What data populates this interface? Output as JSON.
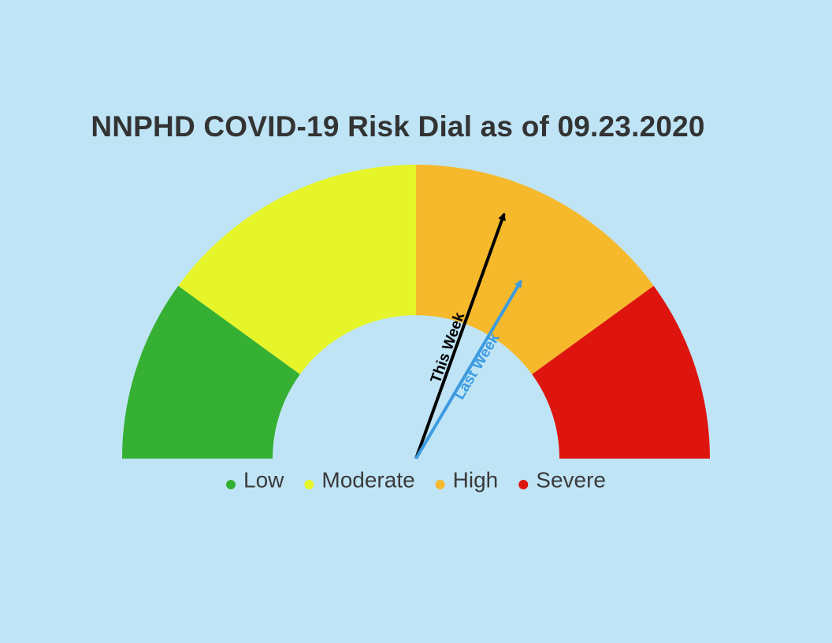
{
  "title": "NNPHD COVID-19 Risk Dial as of 09.23.2020",
  "chart_data": {
    "type": "gauge",
    "title": "NNPHD COVID-19 Risk Dial as of 09.23.2020",
    "scale": [
      0,
      100
    ],
    "segments": [
      {
        "name": "Low",
        "from": 0,
        "to": 20,
        "color": "#35b032"
      },
      {
        "name": "Moderate",
        "from": 20,
        "to": 50,
        "color": "#e6f52a"
      },
      {
        "name": "High",
        "from": 50,
        "to": 80,
        "color": "#f6b92b"
      },
      {
        "name": "Severe",
        "from": 80,
        "to": 100,
        "color": "#de150e"
      }
    ],
    "needles": [
      {
        "label": "This Week",
        "value": 61,
        "color": "#000000"
      },
      {
        "label": "Last Week",
        "value": 67,
        "color": "#3d9be0"
      }
    ],
    "legend": [
      {
        "label": "Low",
        "color": "#35b032"
      },
      {
        "label": "Moderate",
        "color": "#e6f52a"
      },
      {
        "label": "High",
        "color": "#f6b92b"
      },
      {
        "label": "Severe",
        "color": "#de150e"
      }
    ],
    "legend_position": "bottom"
  }
}
